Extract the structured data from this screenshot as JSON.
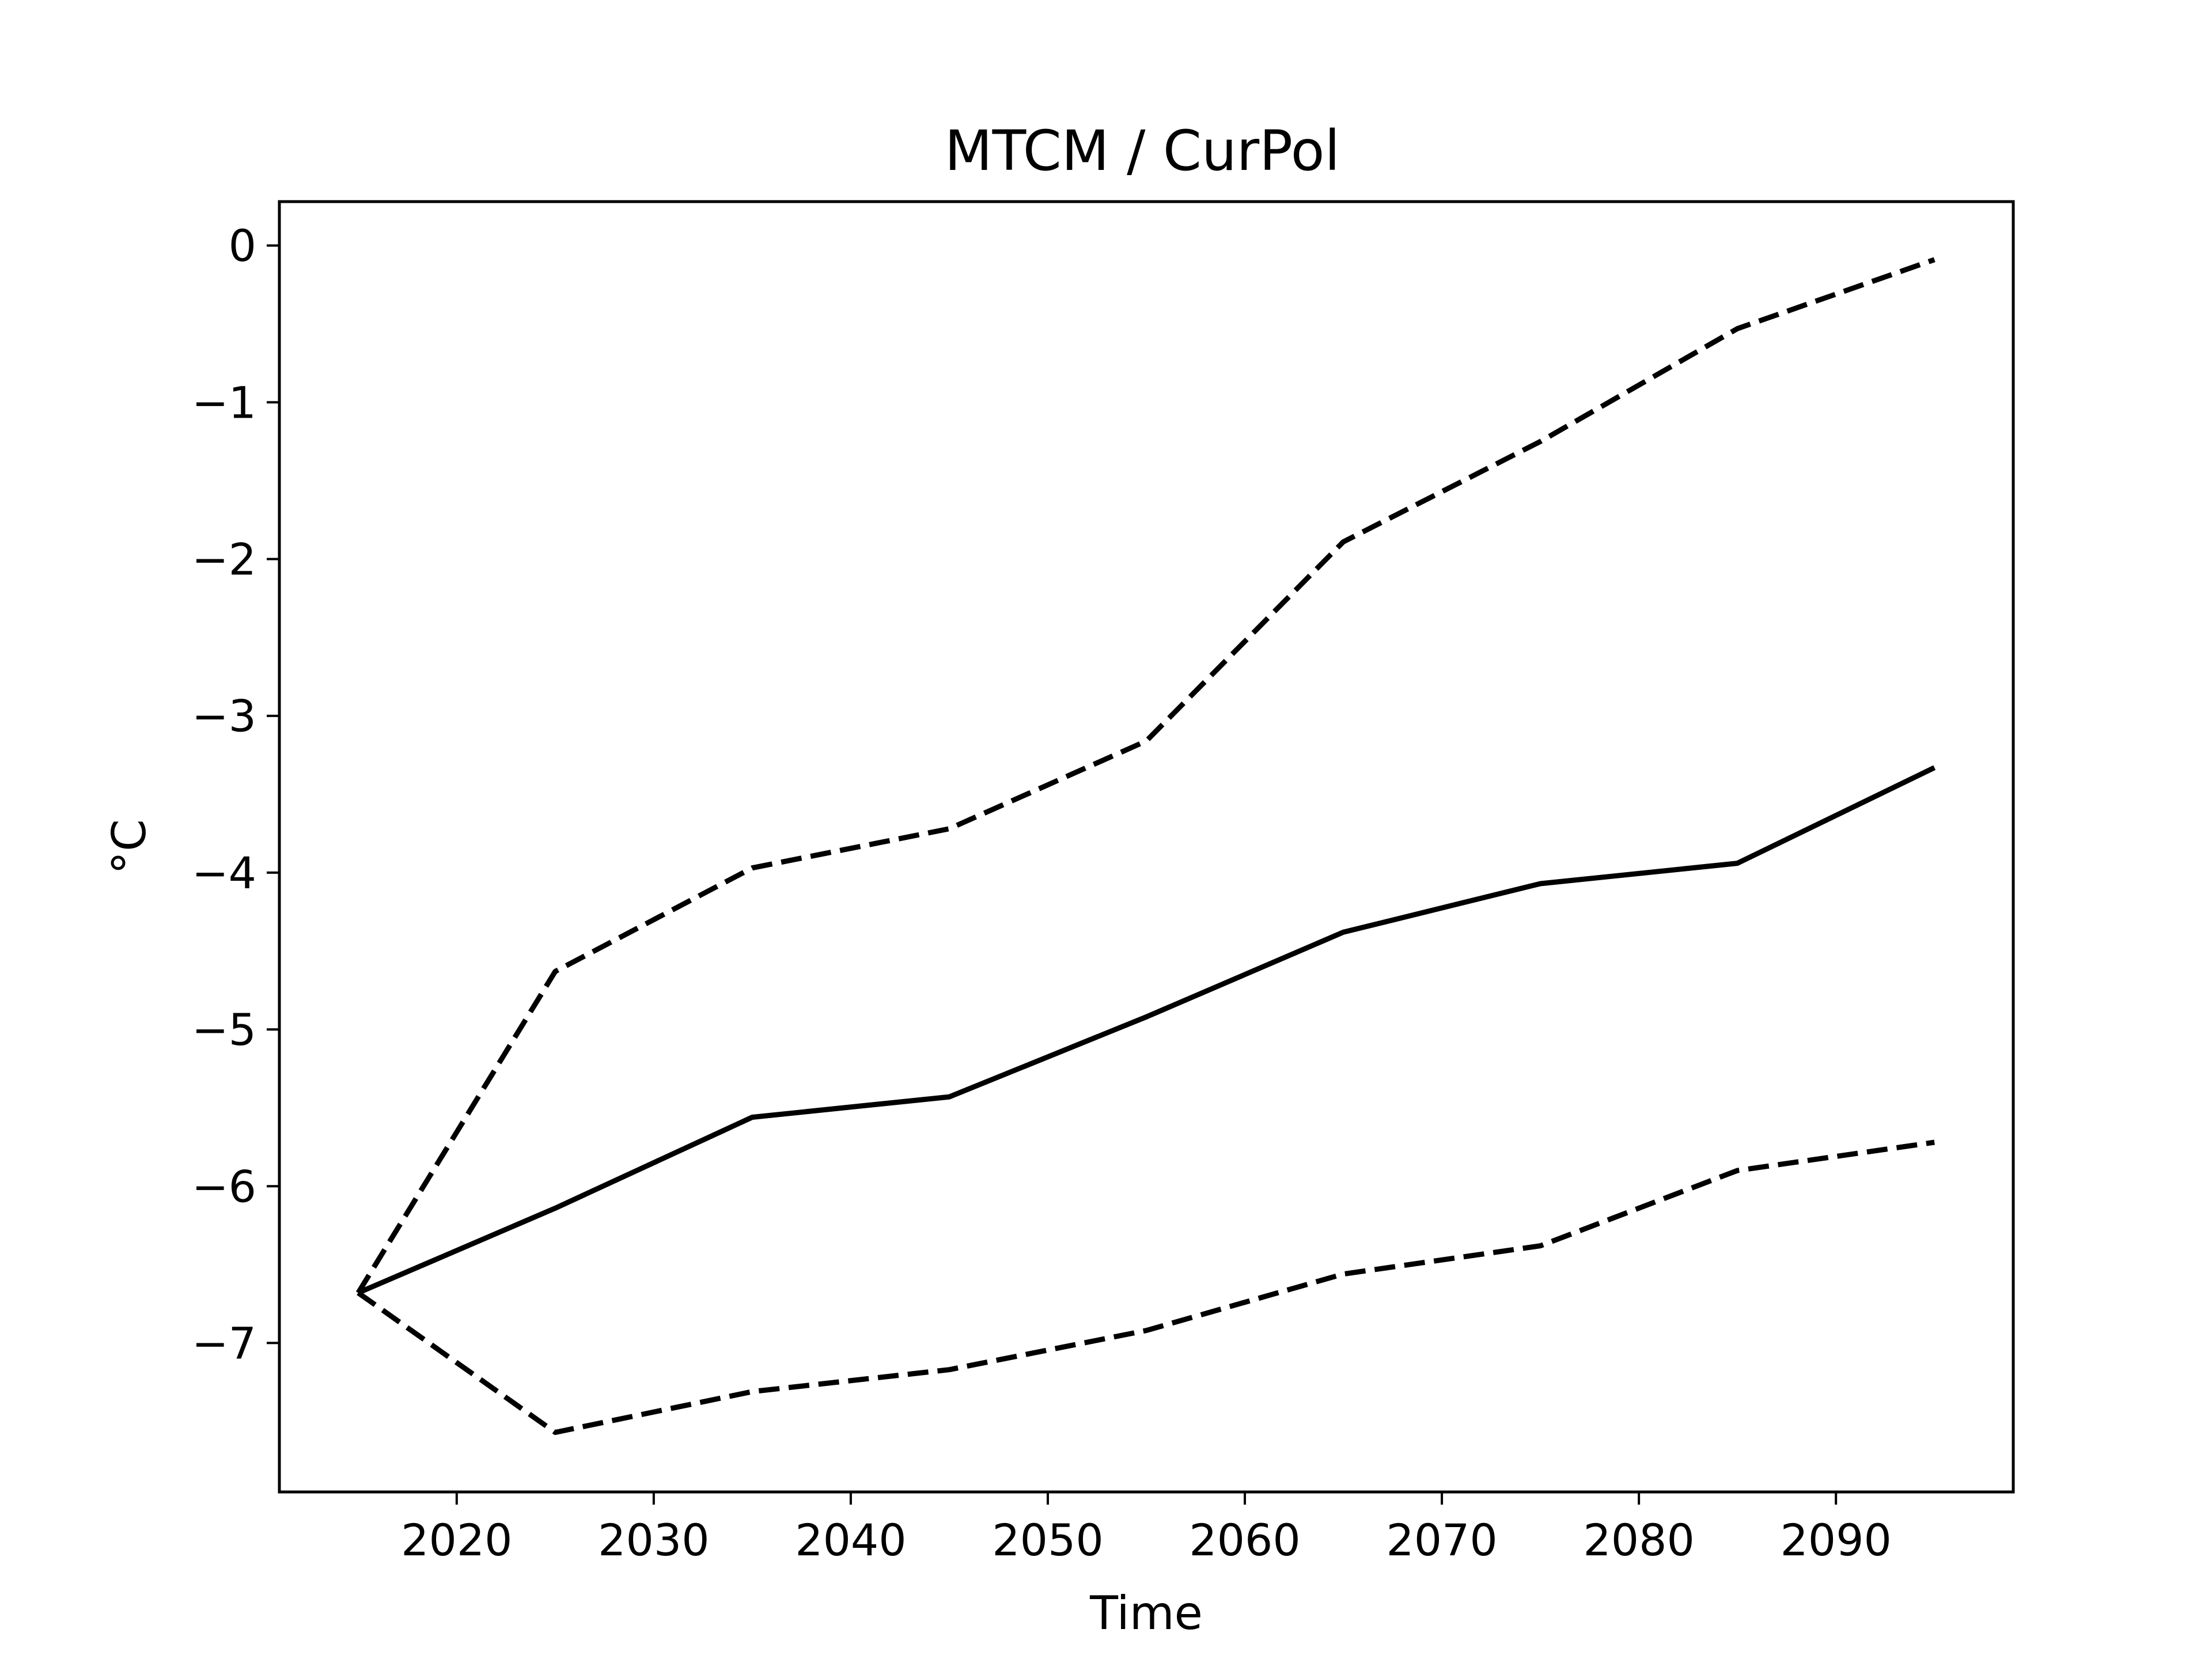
{
  "chart_data": {
    "type": "line",
    "title": "MTCM / CurPol",
    "xlabel": "Time",
    "ylabel": "°C",
    "x": [
      2015,
      2025,
      2035,
      2045,
      2055,
      2065,
      2075,
      2085,
      2095
    ],
    "xlim": [
      2011,
      2099
    ],
    "ylim": [
      -7.95,
      0.28
    ],
    "xticks": [
      2020,
      2030,
      2040,
      2050,
      2060,
      2070,
      2080,
      2090
    ],
    "yticks": [
      0,
      -1,
      -2,
      -3,
      -4,
      -5,
      -6,
      -7
    ],
    "xtick_labels": [
      "2020",
      "2030",
      "2040",
      "2050",
      "2060",
      "2070",
      "2080",
      "2090"
    ],
    "ytick_labels": [
      "0",
      "−1",
      "−2",
      "−3",
      "−4",
      "−5",
      "−6",
      "−7"
    ],
    "grid": false,
    "legend": "none",
    "series": [
      {
        "style": "solid",
        "color": "#000000",
        "values": [
          -6.68,
          -6.14,
          -5.56,
          -5.43,
          -4.92,
          -4.38,
          -4.07,
          -3.94,
          -3.33
        ]
      },
      {
        "style": "dashed",
        "color": "#000000",
        "values": [
          -6.68,
          -4.63,
          -3.97,
          -3.72,
          -3.16,
          -1.89,
          -1.25,
          -0.53,
          -0.09
        ]
      },
      {
        "style": "dashed",
        "color": "#000000",
        "values": [
          -6.68,
          -7.57,
          -7.31,
          -7.17,
          -6.92,
          -6.56,
          -6.38,
          -5.9,
          -5.72
        ]
      }
    ]
  }
}
